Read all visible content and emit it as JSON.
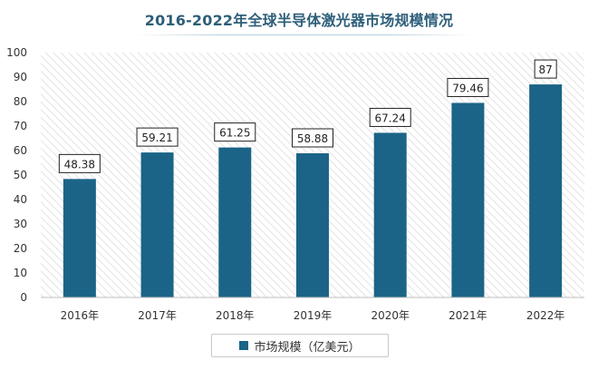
{
  "colors": {
    "bar": "#1b6487",
    "title": "#2e5f7a",
    "hatch": "#e3e3e3"
  },
  "chart_data": {
    "type": "bar",
    "title": "2016-2022年全球半导体激光器市场规模情况",
    "xlabel": "",
    "ylabel": "",
    "categories": [
      "2016年",
      "2017年",
      "2018年",
      "2019年",
      "2020年",
      "2021年",
      "2022年"
    ],
    "series": [
      {
        "name": "市场规模（亿美元）",
        "values": [
          48.38,
          59.21,
          61.25,
          58.88,
          67.24,
          79.46,
          87
        ]
      }
    ],
    "data_labels": [
      "48.38",
      "59.21",
      "61.25",
      "58.88",
      "67.24",
      "79.46",
      "87"
    ],
    "ylim": [
      0,
      100
    ],
    "yticks": [
      0,
      10,
      20,
      30,
      40,
      50,
      60,
      70,
      80,
      90,
      100
    ],
    "grid": false,
    "legend_position": "bottom"
  }
}
